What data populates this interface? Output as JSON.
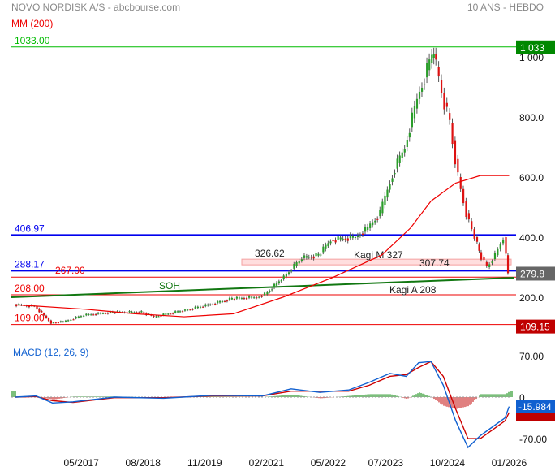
{
  "header": {
    "title": "NOVO NORDISK A/S - abcbourse.com",
    "period": "10 ANS - HEBDO",
    "indicator": "MM (200)"
  },
  "colors": {
    "up": "#2a9d2a",
    "down": "#dd1111",
    "ma": "#ee0000",
    "blue": "#0000ee",
    "green": "#00bb00",
    "trend": "#117711",
    "macd": "#1060d0",
    "signal": "#cc0000"
  },
  "chart_data": [
    {
      "type": "line",
      "title": "NOVO NORDISK A/S",
      "x_ticks": [
        "05/2017",
        "08/2018",
        "11/2019",
        "02/2021",
        "05/2022",
        "07/2023",
        "10/2024",
        "01/2026"
      ],
      "y_ticks": [
        "1 000",
        "800.0",
        "600.0",
        "400.0",
        "200.0"
      ],
      "ylim": [
        100,
        1050
      ],
      "series": [
        {
          "name": "price",
          "x": [
            "2016-01",
            "2016-06",
            "2016-10",
            "2017-01",
            "2017-06",
            "2018-01",
            "2018-08",
            "2018-11",
            "2019-06",
            "2019-11",
            "2020-06",
            "2020-12",
            "2021-02",
            "2021-06",
            "2021-11",
            "2022-03",
            "2022-06",
            "2022-12",
            "2023-03",
            "2023-06",
            "2023-09",
            "2023-12",
            "2024-03",
            "2024-06",
            "2024-07",
            "2024-09",
            "2024-11",
            "2025-01",
            "2025-03",
            "2025-05",
            "2025-06",
            "2025-08",
            "2025-10",
            "2025-12",
            "2026-01"
          ],
          "y": [
            175,
            170,
            115,
            118,
            140,
            150,
            150,
            135,
            155,
            170,
            195,
            200,
            210,
            260,
            330,
            340,
            390,
            400,
            430,
            480,
            610,
            700,
            860,
            980,
            1010,
            880,
            780,
            600,
            480,
            400,
            350,
            300,
            340,
            400,
            280
          ]
        },
        {
          "name": "MM (200)",
          "x": [
            "2016-01",
            "2017-06",
            "2018-06",
            "2019-06",
            "2020-06",
            "2021-06",
            "2022-06",
            "2023-06",
            "2024-01",
            "2024-06",
            "2024-12",
            "2025-06",
            "2026-01"
          ],
          "y": [
            175,
            160,
            145,
            135,
            145,
            200,
            265,
            340,
            430,
            520,
            580,
            605,
            605
          ]
        }
      ],
      "levels": [
        {
          "label": "1033.00",
          "value": 1033,
          "color": "green"
        },
        {
          "label": "406.97",
          "value": 406.97,
          "color": "blue"
        },
        {
          "label": "288.17",
          "value": 288.17,
          "color": "blue"
        },
        {
          "label": "267.00",
          "value": 267,
          "color": "red"
        },
        {
          "label": "208.00",
          "value": 208,
          "color": "red"
        },
        {
          "label": "109.00",
          "value": 109,
          "color": "red"
        }
      ],
      "kagi_zone": {
        "high": 326.62,
        "low": 307.74,
        "high_label": "326.62",
        "low_label": "307.74",
        "label": "Kagi M 327"
      },
      "kagi_a_label": "Kagi A 208",
      "trendline": {
        "label": "SOH",
        "start": [
          "2015-12",
          200
        ],
        "end": [
          "2026-01",
          265
        ]
      },
      "last_labels": {
        "high": "1 033",
        "price": "279.8",
        "low": "109.15"
      }
    },
    {
      "type": "line",
      "title": "MACD (12, 26, 9)",
      "y_ticks": [
        "70.00",
        "0",
        "-70.00"
      ],
      "ylim": [
        -100,
        80
      ],
      "series": [
        {
          "name": "MACD",
          "x": [
            "2016-01",
            "2016-06",
            "2016-10",
            "2017-03",
            "2018-01",
            "2019-01",
            "2020-01",
            "2021-01",
            "2021-08",
            "2022-03",
            "2022-10",
            "2023-03",
            "2023-08",
            "2023-12",
            "2024-03",
            "2024-06",
            "2024-09",
            "2024-12",
            "2025-03",
            "2025-06",
            "2025-09",
            "2025-12",
            "2026-01"
          ],
          "y": [
            0,
            2,
            -10,
            -8,
            0,
            -2,
            3,
            2,
            14,
            8,
            12,
            25,
            40,
            35,
            58,
            60,
            20,
            -40,
            -85,
            -65,
            -50,
            -35,
            -15.984
          ]
        },
        {
          "name": "Signal",
          "x": [
            "2016-01",
            "2016-06",
            "2016-10",
            "2017-03",
            "2018-01",
            "2019-01",
            "2020-01",
            "2021-01",
            "2021-08",
            "2022-03",
            "2022-10",
            "2023-03",
            "2023-08",
            "2023-12",
            "2024-03",
            "2024-06",
            "2024-09",
            "2024-12",
            "2025-03",
            "2025-06",
            "2025-09",
            "2025-12",
            "2026-01"
          ],
          "y": [
            0,
            1,
            -6,
            -9,
            -1,
            -1,
            2,
            2,
            10,
            10,
            10,
            20,
            35,
            38,
            50,
            60,
            35,
            -20,
            -70,
            -70,
            -55,
            -40,
            -26
          ]
        }
      ],
      "last_labels": {
        "macd": "-15.984"
      }
    }
  ]
}
